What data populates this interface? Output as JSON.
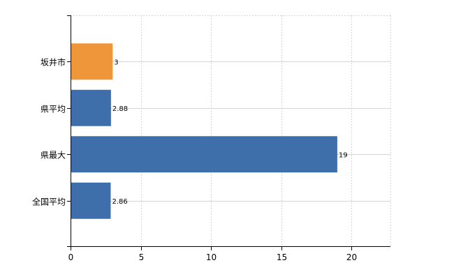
{
  "chart_data": {
    "type": "bar",
    "orientation": "horizontal",
    "categories": [
      "坂井市",
      "県平均",
      "県最大",
      "全国平均"
    ],
    "values": [
      3,
      2.88,
      19,
      2.86
    ],
    "value_labels": [
      "3",
      "2.88",
      "19",
      "2.86"
    ],
    "xlim": [
      0,
      23
    ],
    "xticks": [
      0,
      5,
      10,
      15,
      20
    ],
    "xtick_labels": [
      "0",
      "5",
      "10",
      "15",
      "20"
    ],
    "grid": true,
    "title": "",
    "xlabel": "",
    "ylabel": "",
    "colors": {
      "highlight": "#f0963a",
      "default": "#3f6fab"
    },
    "highlight_index": 0
  }
}
